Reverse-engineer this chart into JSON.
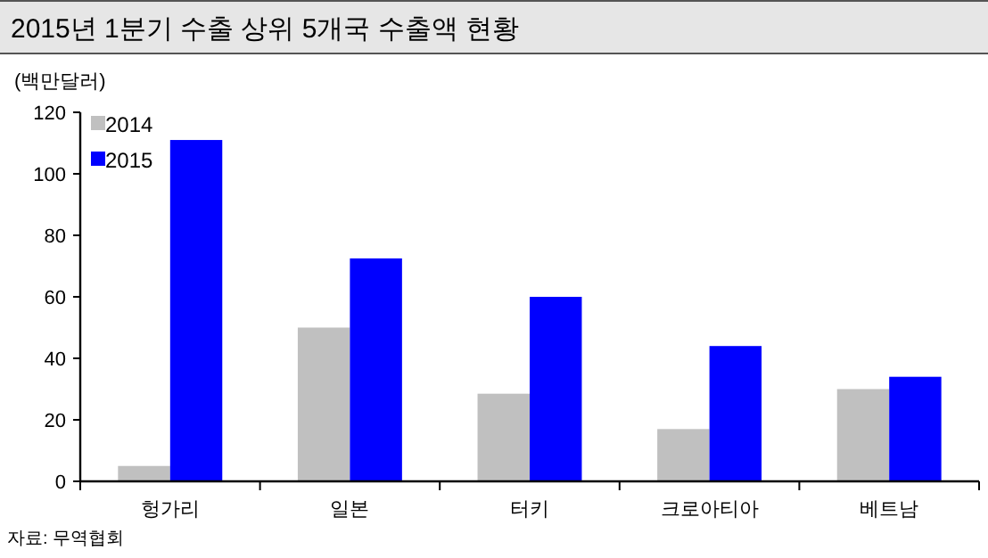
{
  "chart_data": {
    "type": "bar",
    "title": "2015년 1분기 수출 상위 5개국 수출액 현황",
    "ylabel": "(백만달러)",
    "categories": [
      "헝가리",
      "일본",
      "터키",
      "크로아티아",
      "베트남"
    ],
    "series": [
      {
        "name": "2014",
        "color": "#c0c0c0",
        "values": [
          5,
          50,
          28.5,
          17,
          30
        ]
      },
      {
        "name": "2015",
        "color": "#0000ff",
        "values": [
          111,
          72.5,
          60,
          44,
          34
        ]
      }
    ],
    "ylim": [
      0,
      120
    ],
    "yticks": [
      0,
      20,
      40,
      60,
      80,
      100,
      120
    ],
    "grid": false,
    "legend": "top left",
    "annotations": [
      "자료: 무역협회"
    ]
  }
}
